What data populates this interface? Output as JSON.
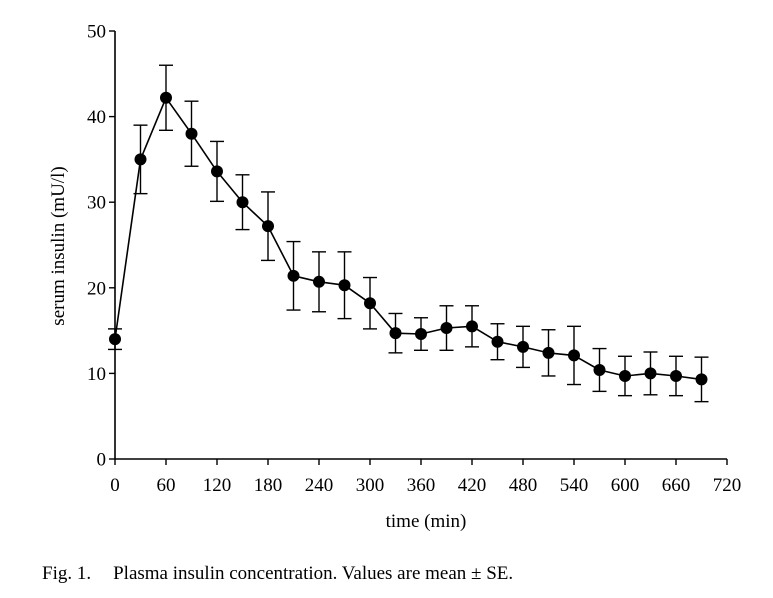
{
  "chart_data": {
    "type": "line",
    "xlabel": "time (min)",
    "ylabel": "serum insulin (mU/l)",
    "xlim": [
      0,
      720
    ],
    "ylim": [
      0,
      50
    ],
    "xticks": [
      "0",
      "60",
      "120",
      "180",
      "240",
      "300",
      "360",
      "420",
      "480",
      "540",
      "600",
      "660",
      "720"
    ],
    "yticks": [
      "0",
      "10",
      "20",
      "30",
      "40",
      "50"
    ],
    "grid": false,
    "error_bars": "mean ± SE",
    "series": [
      {
        "x": [
          0,
          30,
          60,
          90,
          120,
          150,
          180,
          210,
          240,
          270,
          300,
          330,
          360,
          390,
          420,
          450,
          480,
          510,
          540,
          570,
          600,
          630,
          660,
          690
        ],
        "y": [
          14.0,
          35.0,
          42.2,
          38.0,
          33.6,
          30.0,
          27.2,
          21.4,
          20.7,
          20.3,
          18.2,
          14.7,
          14.6,
          15.3,
          15.5,
          13.7,
          13.1,
          12.4,
          12.1,
          10.4,
          9.7,
          10.0,
          9.7,
          9.3
        ],
        "err": [
          1.2,
          4.0,
          3.8,
          3.8,
          3.5,
          3.2,
          4.0,
          4.0,
          3.5,
          3.9,
          3.0,
          2.3,
          1.9,
          2.6,
          2.4,
          2.1,
          2.4,
          2.7,
          3.4,
          2.5,
          2.3,
          2.5,
          2.3,
          2.6
        ]
      }
    ]
  },
  "caption": {
    "label": "Fig. 1.",
    "text": "Plasma insulin concentration. Values are mean ± SE."
  }
}
